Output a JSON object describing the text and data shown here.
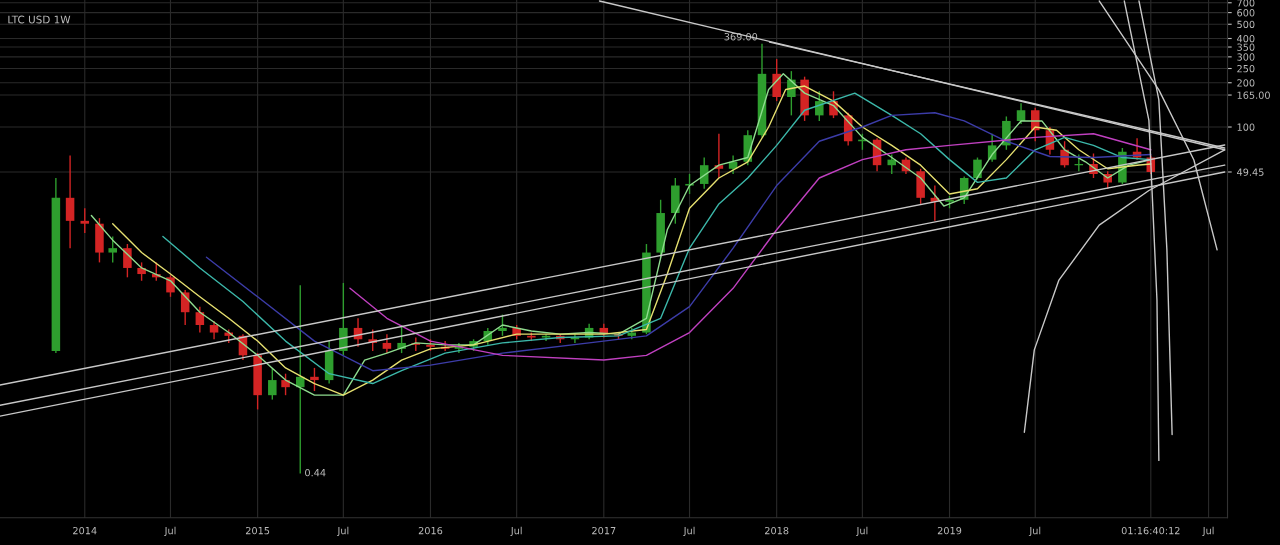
{
  "chart_data": {
    "type": "candlestick",
    "title": "LTC USD 1W",
    "log": "y",
    "grid": true,
    "xlim": [
      "2013-07-06",
      "2020-08-10"
    ],
    "ylim": [
      0.22,
      731
    ],
    "xticks": [
      {
        "value": "2014-01-01",
        "label": "2014"
      },
      {
        "value": "2014-07-01",
        "label": "Jul"
      },
      {
        "value": "2015-01-01",
        "label": "2015"
      },
      {
        "value": "2015-07-01",
        "label": "Jul"
      },
      {
        "value": "2016-01-01",
        "label": "2016"
      },
      {
        "value": "2016-07-01",
        "label": "Jul"
      },
      {
        "value": "2017-01-01",
        "label": "2017"
      },
      {
        "value": "2017-07-01",
        "label": "Jul"
      },
      {
        "value": "2018-01-01",
        "label": "2018"
      },
      {
        "value": "2018-07-01",
        "label": "Jul"
      },
      {
        "value": "2019-01-01",
        "label": "2019"
      },
      {
        "value": "2019-07-01",
        "label": "Jul"
      },
      {
        "value": "2020-03-01",
        "label": "01:16:40:12"
      },
      {
        "value": "2020-07-01",
        "label": "Jul"
      }
    ],
    "yticks": [
      {
        "value": 49.45,
        "label": "49.45"
      },
      100,
      {
        "value": 165,
        "label": "165.00"
      },
      200,
      250,
      300,
      350,
      400,
      500,
      600,
      700
    ],
    "x": [
      "2013-11",
      "2013-12",
      "2014-01",
      "2014-02",
      "2014-03",
      "2014-04",
      "2014-05",
      "2014-06",
      "2014-07",
      "2014-08",
      "2014-09",
      "2014-10",
      "2014-11",
      "2014-12",
      "2015-01",
      "2015-02",
      "2015-03",
      "2015-04",
      "2015-05",
      "2015-06",
      "2015-07",
      "2015-08",
      "2015-09",
      "2015-10",
      "2015-11",
      "2015-12",
      "2016-01",
      "2016-02",
      "2016-03",
      "2016-04",
      "2016-05",
      "2016-06",
      "2016-07",
      "2016-08",
      "2016-09",
      "2016-10",
      "2016-11",
      "2016-12",
      "2017-01",
      "2017-02",
      "2017-03",
      "2017-04",
      "2017-05",
      "2017-06",
      "2017-07",
      "2017-08",
      "2017-09",
      "2017-10",
      "2017-11",
      "2017-12",
      "2018-01",
      "2018-02",
      "2018-03",
      "2018-04",
      "2018-05",
      "2018-06",
      "2018-07",
      "2018-08",
      "2018-09",
      "2018-10",
      "2018-11",
      "2018-12",
      "2019-01",
      "2019-02",
      "2019-03",
      "2019-04",
      "2019-05",
      "2019-06",
      "2019-07",
      "2019-08",
      "2019-09",
      "2019-10",
      "2019-11",
      "2019-12",
      "2020-01",
      "2020-02",
      "2020-03"
    ],
    "ohlc": [
      [
        3.0,
        45,
        2.9,
        33
      ],
      [
        33,
        64,
        15,
        23
      ],
      [
        23,
        28,
        19,
        22
      ],
      [
        22,
        24,
        12,
        14
      ],
      [
        14,
        18,
        12,
        15
      ],
      [
        15,
        16,
        9.5,
        11
      ],
      [
        11,
        12,
        9,
        10
      ],
      [
        10,
        12,
        9,
        9.5
      ],
      [
        9.5,
        9.8,
        7,
        7.5
      ],
      [
        7.5,
        7.8,
        4.5,
        5.5
      ],
      [
        5.5,
        6,
        4.0,
        4.5
      ],
      [
        4.5,
        4.8,
        3.6,
        4
      ],
      [
        4,
        4.2,
        3.4,
        3.8
      ],
      [
        3.8,
        3.9,
        2.6,
        2.8
      ],
      [
        2.8,
        2.9,
        1.2,
        1.5
      ],
      [
        1.5,
        2.3,
        1.4,
        1.9
      ],
      [
        1.9,
        2.1,
        1.5,
        1.7
      ],
      [
        1.7,
        8.4,
        0.44,
        2.0
      ],
      [
        2.0,
        2.3,
        1.6,
        1.9
      ],
      [
        1.9,
        3.5,
        1.8,
        3.0
      ],
      [
        3.0,
        8.7,
        2.8,
        4.3
      ],
      [
        4.3,
        5.0,
        3.2,
        3.6
      ],
      [
        3.6,
        4.2,
        3.0,
        3.4
      ],
      [
        3.4,
        3.9,
        2.9,
        3.1
      ],
      [
        3.1,
        4.5,
        2.9,
        3.4
      ],
      [
        3.4,
        3.7,
        3.0,
        3.3
      ],
      [
        3.3,
        3.6,
        3.0,
        3.2
      ],
      [
        3.2,
        3.5,
        3.0,
        3.1
      ],
      [
        3.1,
        3.4,
        2.9,
        3.2
      ],
      [
        3.2,
        3.6,
        3.0,
        3.5
      ],
      [
        3.5,
        4.3,
        3.3,
        4.1
      ],
      [
        4.1,
        5.3,
        3.8,
        4.3
      ],
      [
        4.3,
        4.5,
        3.6,
        3.8
      ],
      [
        3.8,
        4.0,
        3.5,
        3.7
      ],
      [
        3.7,
        3.9,
        3.5,
        3.8
      ],
      [
        3.8,
        3.9,
        3.4,
        3.6
      ],
      [
        3.6,
        3.9,
        3.4,
        3.7
      ],
      [
        3.7,
        4.6,
        3.6,
        4.3
      ],
      [
        4.3,
        4.6,
        3.7,
        3.9
      ],
      [
        3.9,
        4.0,
        3.6,
        3.8
      ],
      [
        3.8,
        4.3,
        3.6,
        4.0
      ],
      [
        4.0,
        16,
        3.9,
        14
      ],
      [
        14,
        32,
        13,
        26
      ],
      [
        26,
        45,
        22,
        40
      ],
      [
        40,
        48,
        35,
        41
      ],
      [
        41,
        62,
        38,
        55
      ],
      [
        55,
        90,
        45,
        52
      ],
      [
        52,
        64,
        48,
        58
      ],
      [
        58,
        95,
        55,
        88
      ],
      [
        88,
        369,
        85,
        230
      ],
      [
        230,
        290,
        150,
        160
      ],
      [
        160,
        240,
        120,
        210
      ],
      [
        210,
        220,
        110,
        120
      ],
      [
        120,
        175,
        110,
        150
      ],
      [
        150,
        175,
        115,
        120
      ],
      [
        120,
        125,
        75,
        80
      ],
      [
        80,
        90,
        70,
        82
      ],
      [
        82,
        84,
        50,
        55
      ],
      [
        55,
        65,
        48,
        60
      ],
      [
        60,
        62,
        48,
        50
      ],
      [
        50,
        52,
        30,
        33
      ],
      [
        33,
        40,
        23,
        31
      ],
      [
        31,
        34,
        28,
        32
      ],
      [
        32,
        46,
        30,
        45
      ],
      [
        45,
        62,
        44,
        60
      ],
      [
        60,
        90,
        58,
        75
      ],
      [
        75,
        118,
        70,
        110
      ],
      [
        110,
        145,
        105,
        130
      ],
      [
        130,
        135,
        80,
        95
      ],
      [
        95,
        100,
        65,
        70
      ],
      [
        70,
        80,
        53,
        55
      ],
      [
        55,
        65,
        50,
        56
      ],
      [
        56,
        66,
        45,
        48
      ],
      [
        48,
        50,
        38,
        42
      ],
      [
        42,
        72,
        41,
        68
      ],
      [
        68,
        84,
        60,
        62
      ],
      [
        62,
        64,
        48,
        49.45
      ]
    ],
    "series": [
      {
        "type": "line",
        "color": "#8fdc8f",
        "x": [
          "2014-01-15",
          "2014-03-01",
          "2014-05-01",
          "2014-07-01",
          "2014-09-01",
          "2014-11-01",
          "2015-01-01",
          "2015-03-01",
          "2015-05-01",
          "2015-07-01",
          "2015-08-15",
          "2015-10-01",
          "2015-12-01",
          "2016-02-01",
          "2016-04-01",
          "2016-06-01",
          "2016-08-01",
          "2016-10-01",
          "2016-12-01",
          "2017-02-01",
          "2017-04-01",
          "2017-05-15",
          "2017-07-01",
          "2017-09-01",
          "2017-11-01",
          "2017-12-15",
          "2018-01-15",
          "2018-03-01",
          "2018-05-01",
          "2018-07-01",
          "2018-09-01",
          "2018-11-01",
          "2018-12-20",
          "2019-02-01",
          "2019-04-01",
          "2019-06-01",
          "2019-07-15",
          "2019-09-01",
          "2019-10-15",
          "2019-12-01",
          "2020-01-15",
          "2020-03-01"
        ],
        "values": [
          25,
          17,
          11,
          9,
          5.5,
          4.0,
          2.8,
          1.9,
          1.5,
          1.5,
          2.6,
          2.9,
          3.4,
          3.3,
          3.3,
          4.5,
          4.1,
          3.9,
          4.0,
          3.9,
          5,
          20,
          40,
          55,
          62,
          180,
          230,
          170,
          140,
          85,
          62,
          45,
          29,
          33,
          65,
          110,
          110,
          70,
          58,
          45,
          55,
          60
        ]
      },
      {
        "type": "line",
        "color": "#e6e070",
        "x": [
          "2014-03-01",
          "2014-05-01",
          "2014-07-01",
          "2014-09-01",
          "2014-11-01",
          "2015-01-01",
          "2015-03-01",
          "2015-05-01",
          "2015-07-01",
          "2015-09-01",
          "2015-11-01",
          "2016-01-01",
          "2016-04-01",
          "2016-07-01",
          "2016-10-01",
          "2017-01-01",
          "2017-04-01",
          "2017-05-15",
          "2017-07-01",
          "2017-09-01",
          "2017-11-01",
          "2017-12-15",
          "2018-01-20",
          "2018-03-01",
          "2018-05-01",
          "2018-07-01",
          "2018-09-01",
          "2018-11-01",
          "2019-01-01",
          "2019-03-01",
          "2019-05-01",
          "2019-07-01",
          "2019-08-15",
          "2019-10-01",
          "2019-12-01",
          "2020-02-01",
          "2020-03-01"
        ],
        "values": [
          22,
          14,
          10,
          7,
          5,
          3.5,
          2.3,
          1.8,
          1.5,
          1.9,
          2.6,
          3.1,
          3.3,
          3.9,
          3.9,
          3.9,
          4.2,
          10,
          28,
          45,
          58,
          100,
          180,
          190,
          150,
          100,
          75,
          55,
          35,
          38,
          60,
          100,
          95,
          70,
          52,
          55,
          56
        ]
      },
      {
        "type": "line",
        "color": "#3cb8aa",
        "x": [
          "2014-06-15",
          "2014-09-01",
          "2014-12-01",
          "2015-03-01",
          "2015-06-01",
          "2015-09-01",
          "2015-11-01",
          "2016-02-01",
          "2016-06-01",
          "2016-10-01",
          "2017-02-01",
          "2017-05-01",
          "2017-07-01",
          "2017-09-01",
          "2017-11-01",
          "2018-01-01",
          "2018-03-01",
          "2018-06-15",
          "2018-09-01",
          "2018-11-01",
          "2019-01-01",
          "2019-03-01",
          "2019-05-01",
          "2019-07-01",
          "2019-09-01",
          "2019-11-01",
          "2020-01-01",
          "2020-03-01"
        ],
        "values": [
          18,
          11,
          6.5,
          3.5,
          2.1,
          1.8,
          2.2,
          2.9,
          3.4,
          3.7,
          3.8,
          5,
          15,
          30,
          45,
          75,
          130,
          170,
          120,
          90,
          60,
          42,
          45,
          70,
          85,
          75,
          62,
          60
        ]
      },
      {
        "type": "line",
        "color": "#3c3ca8",
        "x": [
          "2014-09-15",
          "2015-01-01",
          "2015-05-01",
          "2015-09-01",
          "2016-01-01",
          "2016-06-01",
          "2016-12-01",
          "2017-04-01",
          "2017-07-01",
          "2017-10-01",
          "2018-01-01",
          "2018-04-01",
          "2018-07-01",
          "2018-09-01",
          "2018-12-01",
          "2019-02-01",
          "2019-05-01",
          "2019-08-01",
          "2019-11-01",
          "2020-03-01"
        ],
        "values": [
          13,
          7,
          3.5,
          2.2,
          2.4,
          2.9,
          3.4,
          3.8,
          6,
          15,
          40,
          80,
          100,
          120,
          125,
          110,
          80,
          63,
          62,
          65
        ]
      },
      {
        "type": "line",
        "color": "#c040c0",
        "x": [
          "2015-07-15",
          "2015-10-01",
          "2016-01-01",
          "2016-06-01",
          "2017-01-01",
          "2017-04-01",
          "2017-07-01",
          "2017-10-01",
          "2018-01-01",
          "2018-04-01",
          "2018-07-01",
          "2018-10-01",
          "2019-01-01",
          "2019-07-01",
          "2019-11-01",
          "2020-03-01"
        ],
        "values": [
          8,
          5,
          3.5,
          2.8,
          2.6,
          2.8,
          4,
          8,
          20,
          45,
          60,
          70,
          75,
          85,
          90,
          70
        ]
      },
      {
        "type": "line",
        "color": "#c8c8c8",
        "x": [
          "2013-07-06",
          "2020-08-04"
        ],
        "values": [
          1.76,
          75.5
        ]
      },
      {
        "type": "line",
        "color": "#c8c8c8",
        "x": [
          "2013-07-06",
          "2020-08-04"
        ],
        "values": [
          1.28,
          55.1
        ]
      },
      {
        "type": "line",
        "color": "#c8c8c8",
        "x": [
          "2013-07-06",
          "2020-08-04"
        ],
        "values": [
          1.08,
          49.4
        ]
      },
      {
        "type": "line",
        "color": "#c8c8c8",
        "x": [
          "2017-12-17",
          "2020-08-04"
        ],
        "values": [
          378,
          72
        ]
      },
      {
        "type": "line",
        "color": "#c8c8c8",
        "x": [
          "2016-12-23",
          "2020-08-04"
        ],
        "values": [
          720,
          70
        ]
      },
      {
        "type": "line",
        "color": "#c8c8c8",
        "x": [
          "2019-06-08",
          "2019-06-29",
          "2019-08-20",
          "2019-11-13",
          "2020-02-26",
          "2020-08-04"
        ],
        "values": [
          0.84,
          3.05,
          9.1,
          21.5,
          37,
          69.8
        ]
      },
      {
        "type": "line",
        "color": "#c8c8c8",
        "x": [
          "2019-11-13",
          "2020-03-18",
          "2020-05-31",
          "2020-07-19"
        ],
        "values": [
          720,
          179,
          59.7,
          14.6
        ]
      },
      {
        "type": "line",
        "color": "#c8c8c8",
        "x": [
          "2020-02-05",
          "2020-03-18",
          "2020-04-04",
          "2020-04-15"
        ],
        "values": [
          720,
          153,
          14.6,
          0.81
        ]
      },
      {
        "type": "line",
        "color": "#c8c8c8",
        "x": [
          "2020-01-05",
          "2020-02-26",
          "2020-03-14",
          "2020-03-18"
        ],
        "values": [
          720,
          111,
          6.66,
          0.54
        ]
      }
    ],
    "annotations": [
      {
        "text": "369.00",
        "x": "2017-12",
        "y": 369
      },
      {
        "text": "0.44",
        "x": "2015-04",
        "y": 0.44
      }
    ]
  }
}
